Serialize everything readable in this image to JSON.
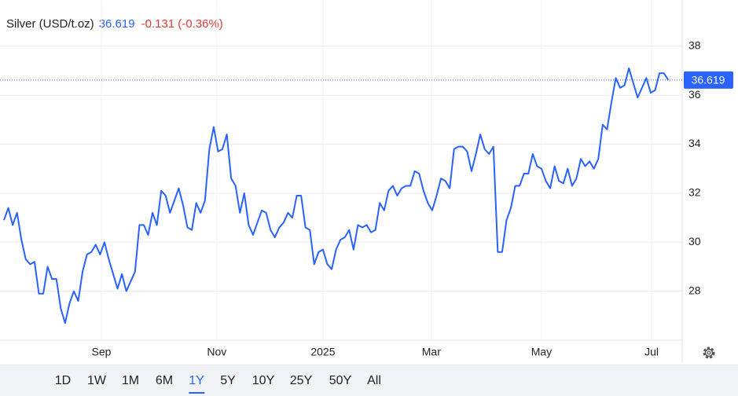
{
  "chart_data": {
    "type": "line",
    "title": "Silver (USD/t.oz)",
    "quote": {
      "price": "36.619",
      "change": "-0.131 (-0.36%)"
    },
    "series": [
      {
        "name": "Silver",
        "color": "#2962ff",
        "values": [
          30.9,
          31.4,
          30.7,
          31.2,
          30.1,
          29.3,
          29.1,
          29.2,
          27.9,
          27.9,
          29.0,
          28.5,
          28.5,
          27.3,
          26.7,
          27.5,
          28.0,
          27.6,
          28.8,
          29.5,
          29.6,
          29.9,
          29.5,
          30.0,
          29.3,
          28.7,
          28.1,
          28.7,
          28.0,
          28.4,
          28.8,
          30.7,
          30.7,
          30.3,
          31.2,
          30.7,
          32.1,
          31.9,
          31.2,
          31.7,
          32.2,
          31.5,
          30.6,
          30.5,
          31.6,
          31.2,
          31.7,
          33.8,
          34.7,
          33.7,
          33.8,
          34.4,
          32.6,
          32.3,
          31.2,
          32.0,
          30.7,
          30.3,
          30.8,
          31.3,
          31.2,
          30.5,
          30.2,
          30.6,
          30.8,
          31.2,
          31.0,
          31.9,
          31.9,
          30.6,
          30.5,
          29.1,
          29.6,
          29.7,
          29.1,
          28.9,
          29.7,
          30.1,
          30.2,
          30.5,
          29.7,
          30.7,
          30.6,
          30.7,
          30.4,
          30.5,
          31.6,
          31.3,
          32.1,
          32.3,
          31.9,
          32.2,
          32.3,
          32.3,
          32.9,
          32.8,
          32.1,
          31.6,
          31.3,
          31.9,
          32.6,
          32.5,
          32.2,
          33.8,
          33.9,
          33.9,
          33.7,
          32.9,
          33.6,
          34.4,
          33.8,
          33.6,
          33.9,
          29.6,
          29.6,
          30.9,
          31.4,
          32.3,
          32.3,
          32.8,
          32.8,
          33.6,
          33.1,
          33.0,
          32.5,
          32.2,
          33.1,
          32.5,
          32.4,
          33.0,
          32.3,
          32.6,
          33.4,
          33.1,
          33.3,
          33.0,
          33.4,
          34.8,
          34.6,
          35.7,
          36.7,
          36.3,
          36.4,
          37.1,
          36.5,
          35.9,
          36.3,
          36.7,
          36.1,
          36.2,
          36.9,
          36.9,
          36.619
        ]
      }
    ],
    "xlim": [
      -0.9,
      155.2
    ],
    "xticks": [
      {
        "value": 22.3,
        "label": "Sep"
      },
      {
        "value": 48.7,
        "label": "Nov"
      },
      {
        "value": 73.0,
        "label": "2025"
      },
      {
        "value": 97.8,
        "label": "Mar"
      },
      {
        "value": 123.0,
        "label": "May"
      },
      {
        "value": 148.2,
        "label": "Jul"
      }
    ],
    "ylim": [
      26,
      39.5
    ],
    "yticks": [
      28,
      30,
      32,
      34,
      36,
      38
    ],
    "grid": true
  },
  "toolbar": {
    "ranges": [
      "1D",
      "1W",
      "1M",
      "6M",
      "1Y",
      "5Y",
      "10Y",
      "25Y",
      "50Y",
      "All"
    ],
    "selected": 4
  }
}
